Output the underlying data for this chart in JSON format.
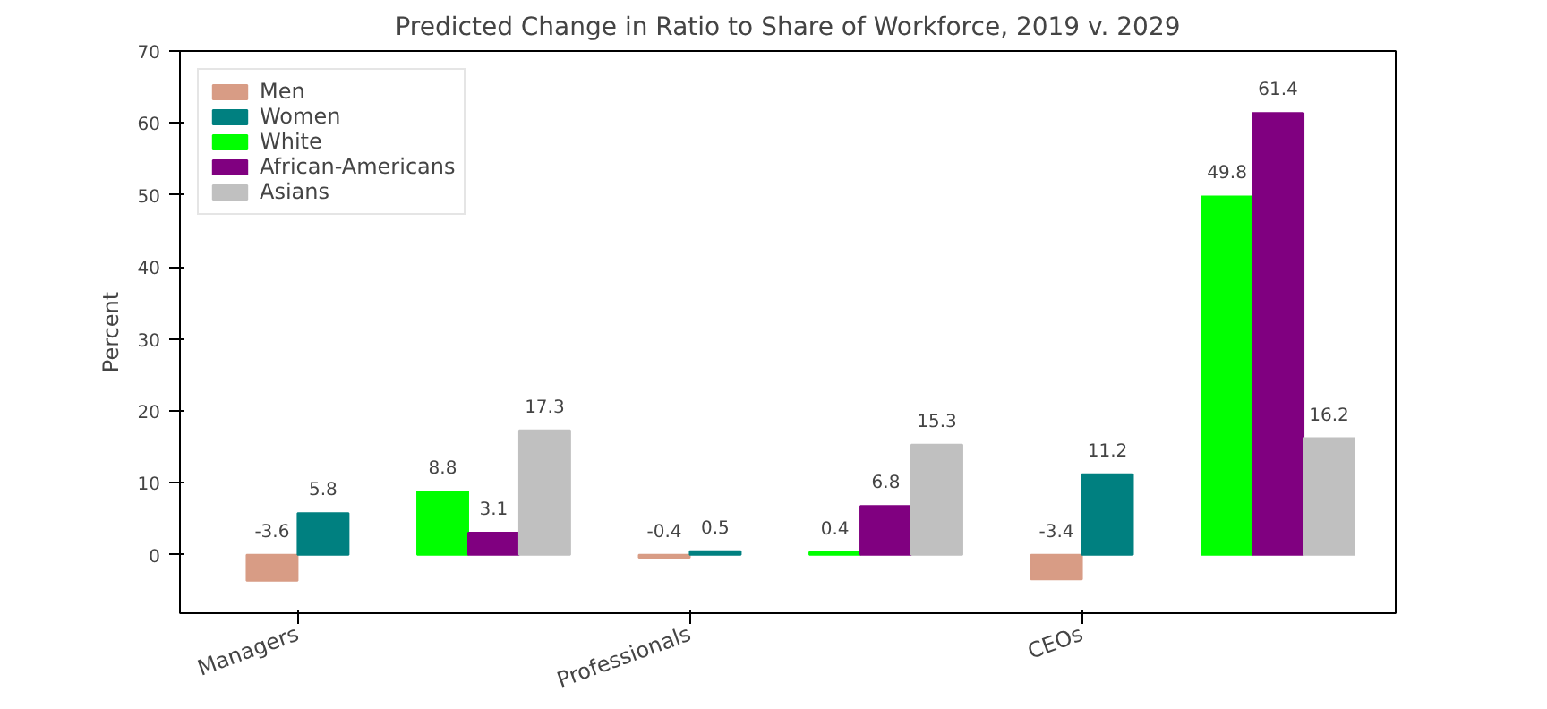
{
  "chart_data": {
    "type": "bar",
    "title": "Predicted Change in Ratio to Share of Workforce, 2019 v. 2029",
    "ylabel": "Percent",
    "categories": [
      "Managers",
      null,
      "Professionals",
      null,
      "CEOs",
      null
    ],
    "ylim": [
      -8.1,
      70
    ],
    "yticks": [
      0,
      10,
      20,
      30,
      40,
      50,
      60,
      70
    ],
    "series": [
      {
        "name": "Men",
        "color": "#d89c85",
        "values": [
          -3.6,
          null,
          -0.4,
          null,
          -3.4,
          null
        ]
      },
      {
        "name": "Women",
        "color": "#008080",
        "values": [
          5.8,
          null,
          0.5,
          null,
          11.2,
          null
        ]
      },
      {
        "name": "White",
        "color": "#00ff00",
        "values": [
          null,
          8.8,
          null,
          0.4,
          null,
          49.8
        ]
      },
      {
        "name": "African-Americans",
        "color": "#800080",
        "values": [
          null,
          3.1,
          null,
          6.8,
          null,
          61.4
        ]
      },
      {
        "name": "Asians",
        "color": "#c0c0c0",
        "values": [
          null,
          17.3,
          null,
          15.3,
          null,
          16.2
        ]
      }
    ],
    "data_labels": true,
    "legend": "top left",
    "grid": false
  }
}
